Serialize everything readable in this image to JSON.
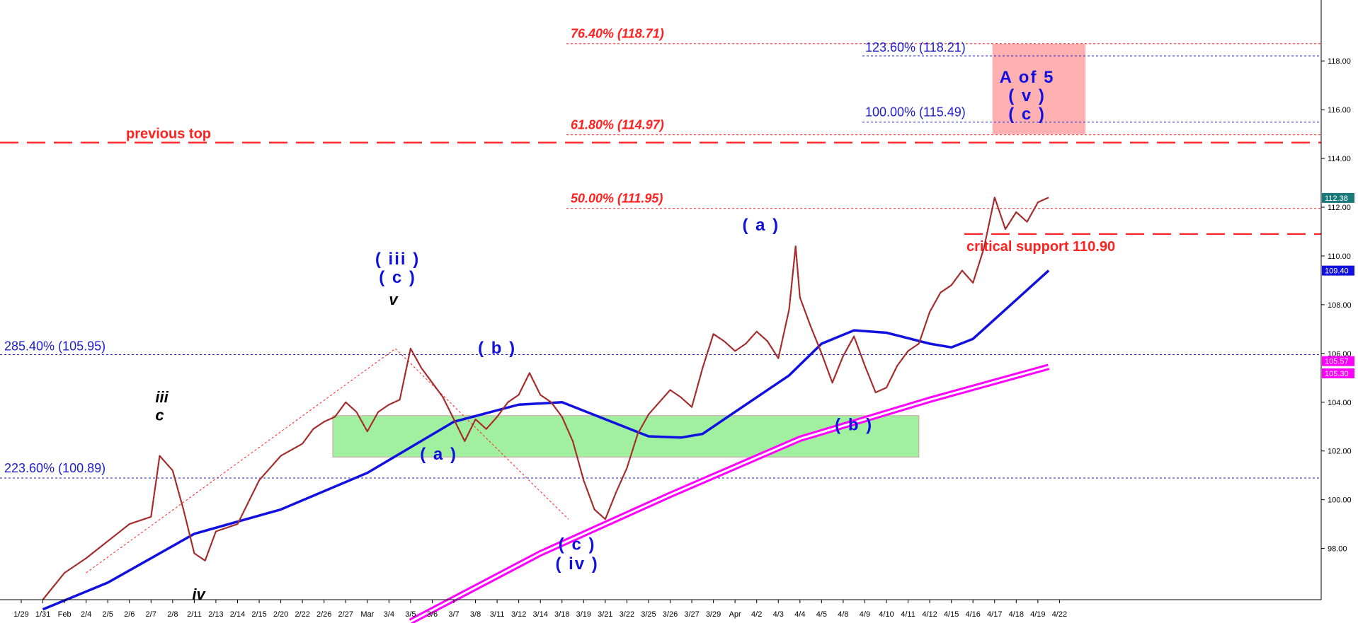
{
  "chart_data": {
    "type": "line",
    "title": "",
    "xlabel": "",
    "ylabel": "",
    "ylim": [
      95.9,
      120.5
    ],
    "grid": false,
    "y_ticks": [
      98,
      100,
      102,
      104,
      106,
      108,
      110,
      112,
      114,
      116,
      118
    ],
    "y_tick_labels": [
      "98.00",
      "100.00",
      "102.00",
      "104.00",
      "106.00",
      "108.00",
      "110.00",
      "112.00",
      "114.00",
      "116.00",
      "118.00"
    ],
    "x_tick_labels": [
      "1/29",
      "1/31",
      "Feb",
      "2/4",
      "2/5",
      "2/6",
      "2/7",
      "2/8",
      "2/11",
      "2/13",
      "2/14",
      "2/15",
      "2/20",
      "2/22",
      "2/26",
      "2/27",
      "Mar",
      "3/4",
      "3/5",
      "3/6",
      "3/7",
      "3/8",
      "3/11",
      "3/12",
      "3/14",
      "3/18",
      "3/19",
      "3/21",
      "3/22",
      "3/25",
      "3/26",
      "3/27",
      "3/29",
      "Apr",
      "4/2",
      "4/3",
      "4/4",
      "4/5",
      "4/8",
      "4/9",
      "4/10",
      "4/11",
      "4/12",
      "4/15",
      "4/16",
      "4/17",
      "4/18",
      "4/19",
      "4/22"
    ],
    "price_line": [
      [
        1,
        95.9
      ],
      [
        2,
        97.0
      ],
      [
        3,
        97.6
      ],
      [
        4,
        98.3
      ],
      [
        5,
        99.0
      ],
      [
        6,
        99.3
      ],
      [
        6.4,
        101.8
      ],
      [
        7,
        101.2
      ],
      [
        7.5,
        99.6
      ],
      [
        8,
        97.8
      ],
      [
        8.5,
        97.5
      ],
      [
        9,
        98.7
      ],
      [
        10,
        99.0
      ],
      [
        11,
        100.8
      ],
      [
        12,
        101.8
      ],
      [
        13,
        102.3
      ],
      [
        13.5,
        102.9
      ],
      [
        14,
        103.2
      ],
      [
        14.5,
        103.4
      ],
      [
        15,
        104.0
      ],
      [
        15.5,
        103.6
      ],
      [
        16,
        102.8
      ],
      [
        16.5,
        103.6
      ],
      [
        17,
        103.9
      ],
      [
        17.5,
        104.1
      ],
      [
        18,
        106.2
      ],
      [
        18.5,
        105.4
      ],
      [
        19,
        104.8
      ],
      [
        19.5,
        104.2
      ],
      [
        20,
        103.3
      ],
      [
        20.5,
        102.4
      ],
      [
        21,
        103.3
      ],
      [
        21.5,
        102.9
      ],
      [
        22,
        103.4
      ],
      [
        22.5,
        104.0
      ],
      [
        23,
        104.3
      ],
      [
        23.5,
        105.2
      ],
      [
        24,
        104.3
      ],
      [
        24.5,
        104.0
      ],
      [
        25,
        103.4
      ],
      [
        25.5,
        102.4
      ],
      [
        26,
        100.8
      ],
      [
        26.5,
        99.6
      ],
      [
        27,
        99.2
      ],
      [
        27.5,
        100.3
      ],
      [
        28,
        101.3
      ],
      [
        28.5,
        102.7
      ],
      [
        29,
        103.5
      ],
      [
        29.5,
        104.0
      ],
      [
        30,
        104.5
      ],
      [
        30.5,
        104.2
      ],
      [
        31,
        103.8
      ],
      [
        31.5,
        105.4
      ],
      [
        32,
        106.8
      ],
      [
        32.5,
        106.5
      ],
      [
        33,
        106.1
      ],
      [
        33.5,
        106.4
      ],
      [
        34,
        106.9
      ],
      [
        34.5,
        106.5
      ],
      [
        35,
        105.8
      ],
      [
        35.5,
        107.8
      ],
      [
        35.8,
        110.4
      ],
      [
        36,
        108.3
      ],
      [
        36.5,
        107.1
      ],
      [
        37,
        106.0
      ],
      [
        37.5,
        104.8
      ],
      [
        38,
        105.9
      ],
      [
        38.5,
        106.7
      ],
      [
        39,
        105.5
      ],
      [
        39.5,
        104.4
      ],
      [
        40,
        104.6
      ],
      [
        40.5,
        105.5
      ],
      [
        41,
        106.1
      ],
      [
        41.5,
        106.4
      ],
      [
        42,
        107.7
      ],
      [
        42.5,
        108.5
      ],
      [
        43,
        108.8
      ],
      [
        43.5,
        109.4
      ],
      [
        44,
        108.9
      ],
      [
        44.5,
        110.3
      ],
      [
        45,
        112.4
      ],
      [
        45.5,
        111.1
      ],
      [
        46,
        111.8
      ],
      [
        46.5,
        111.4
      ],
      [
        47,
        112.2
      ],
      [
        47.5,
        112.4
      ]
    ],
    "series": [
      {
        "name": "",
        "color": "#1010e0",
        "values": [
          [
            1,
            95.5
          ],
          [
            4,
            96.6
          ],
          [
            8,
            98.6
          ],
          [
            12,
            99.6
          ],
          [
            16,
            101.1
          ],
          [
            20,
            103.2
          ],
          [
            23,
            103.9
          ],
          [
            25,
            104.0
          ],
          [
            29,
            102.6
          ],
          [
            30.5,
            102.55
          ],
          [
            31.5,
            102.7
          ],
          [
            33.5,
            103.9
          ],
          [
            35.5,
            105.1
          ],
          [
            37,
            106.4
          ],
          [
            38.5,
            106.95
          ],
          [
            40,
            106.85
          ],
          [
            42,
            106.4
          ],
          [
            43,
            106.25
          ],
          [
            44,
            106.6
          ],
          [
            45,
            107.4
          ],
          [
            46,
            108.2
          ],
          [
            47.5,
            109.4
          ]
        ]
      },
      {
        "name": "",
        "color": "#ff00ff",
        "values": [
          [
            18,
            95.0
          ],
          [
            24,
            97.8
          ],
          [
            30,
            100.2
          ],
          [
            36,
            102.5
          ],
          [
            42,
            104.1
          ],
          [
            47.5,
            105.45
          ]
        ]
      }
    ],
    "last_value_labels": [
      {
        "value": 112.38,
        "text": "112.38",
        "color": "#1a7a7a"
      },
      {
        "value": 109.4,
        "text": "109.40",
        "color": "#1010e0"
      },
      {
        "value": 105.57,
        "text": "105.57",
        "color": "#ff00ff"
      },
      {
        "value": 105.3,
        "text": "105.30",
        "color": "#ff00ff"
      }
    ],
    "horizontal_levels": [
      {
        "value": 118.71,
        "label": "76.40% (118.71)",
        "color": "#ff2020",
        "style": "dotted",
        "bold": true,
        "italic": true
      },
      {
        "value": 118.21,
        "label": "123.60% (118.21)",
        "color": "#2020d0",
        "style": "dotted"
      },
      {
        "value": 115.49,
        "label": "100.00% (115.49)",
        "color": "#2020d0",
        "style": "dotted"
      },
      {
        "value": 114.97,
        "label": "61.80% (114.97)",
        "color": "#ff2020",
        "style": "dotted",
        "bold": true,
        "italic": true
      },
      {
        "value": 114.65,
        "label": "previous top",
        "color": "#ff2020",
        "style": "dashed",
        "bold": true
      },
      {
        "value": 111.95,
        "label": "50.00% (111.95)",
        "color": "#ff2020",
        "style": "dotted",
        "bold": true,
        "italic": true
      },
      {
        "value": 110.9,
        "label": "critical support 110.90",
        "color": "#ff2020",
        "style": "dashed",
        "bold": true
      },
      {
        "value": 105.95,
        "label": "285.40% (105.95)",
        "color": "#2020d0",
        "style": "dotted"
      },
      {
        "value": 100.89,
        "label": "223.60% (100.89)",
        "color": "#2020d0",
        "style": "dotted"
      }
    ],
    "zones": [
      {
        "name": "support zone",
        "color": "#a0f0a0",
        "x0": 14.4,
        "x1": 41.5,
        "y0": 101.75,
        "y1": 103.45
      },
      {
        "name": "target zone",
        "color": "#ffb0b0",
        "x0": 44.9,
        "x1": 49.2,
        "y0": 115.0,
        "y1": 118.7
      }
    ],
    "annotations": [
      {
        "text": "( iii )",
        "x": 17.4,
        "y": 109.65,
        "color": "#1010e0"
      },
      {
        "text": "( c )",
        "x": 17.4,
        "y": 108.9,
        "color": "#1010e0"
      },
      {
        "text": "v",
        "x": 17.2,
        "y": 108.0,
        "color": "#000000",
        "italic": true
      },
      {
        "text": "iii",
        "x": 6.5,
        "y": 104.0,
        "color": "#000000",
        "italic": true
      },
      {
        "text": "c",
        "x": 6.4,
        "y": 103.25,
        "color": "#000000",
        "italic": true
      },
      {
        "text": "iv",
        "x": 8.2,
        "y": 95.9,
        "color": "#000000",
        "italic": true
      },
      {
        "text": "( a )",
        "x": 19.3,
        "y": 101.65,
        "color": "#1010e0"
      },
      {
        "text": "( b )",
        "x": 22.0,
        "y": 106.0,
        "color": "#1010e0"
      },
      {
        "text": "( c )",
        "x": 25.7,
        "y": 97.95,
        "color": "#1010e0"
      },
      {
        "text": "( iv )",
        "x": 25.7,
        "y": 97.15,
        "color": "#1010e0"
      },
      {
        "text": "( a )",
        "x": 34.2,
        "y": 111.05,
        "color": "#1010e0"
      },
      {
        "text": "( b )",
        "x": 38.5,
        "y": 102.85,
        "color": "#1010e0"
      },
      {
        "text": "A of 5",
        "x": 46.5,
        "y": 117.1,
        "color": "#1010e0"
      },
      {
        "text": "( v )",
        "x": 46.5,
        "y": 116.35,
        "color": "#1010e0"
      },
      {
        "text": "( c )",
        "x": 46.5,
        "y": 115.6,
        "color": "#1010e0"
      }
    ],
    "guide_lines": [
      {
        "from": [
          3,
          97.0
        ],
        "to": [
          17.3,
          106.2
        ],
        "color": "#ff2020",
        "style": "dotted"
      },
      {
        "from": [
          17.3,
          106.2
        ],
        "to": [
          25.3,
          99.2
        ],
        "color": "#ff2020",
        "style": "dotted"
      }
    ]
  }
}
